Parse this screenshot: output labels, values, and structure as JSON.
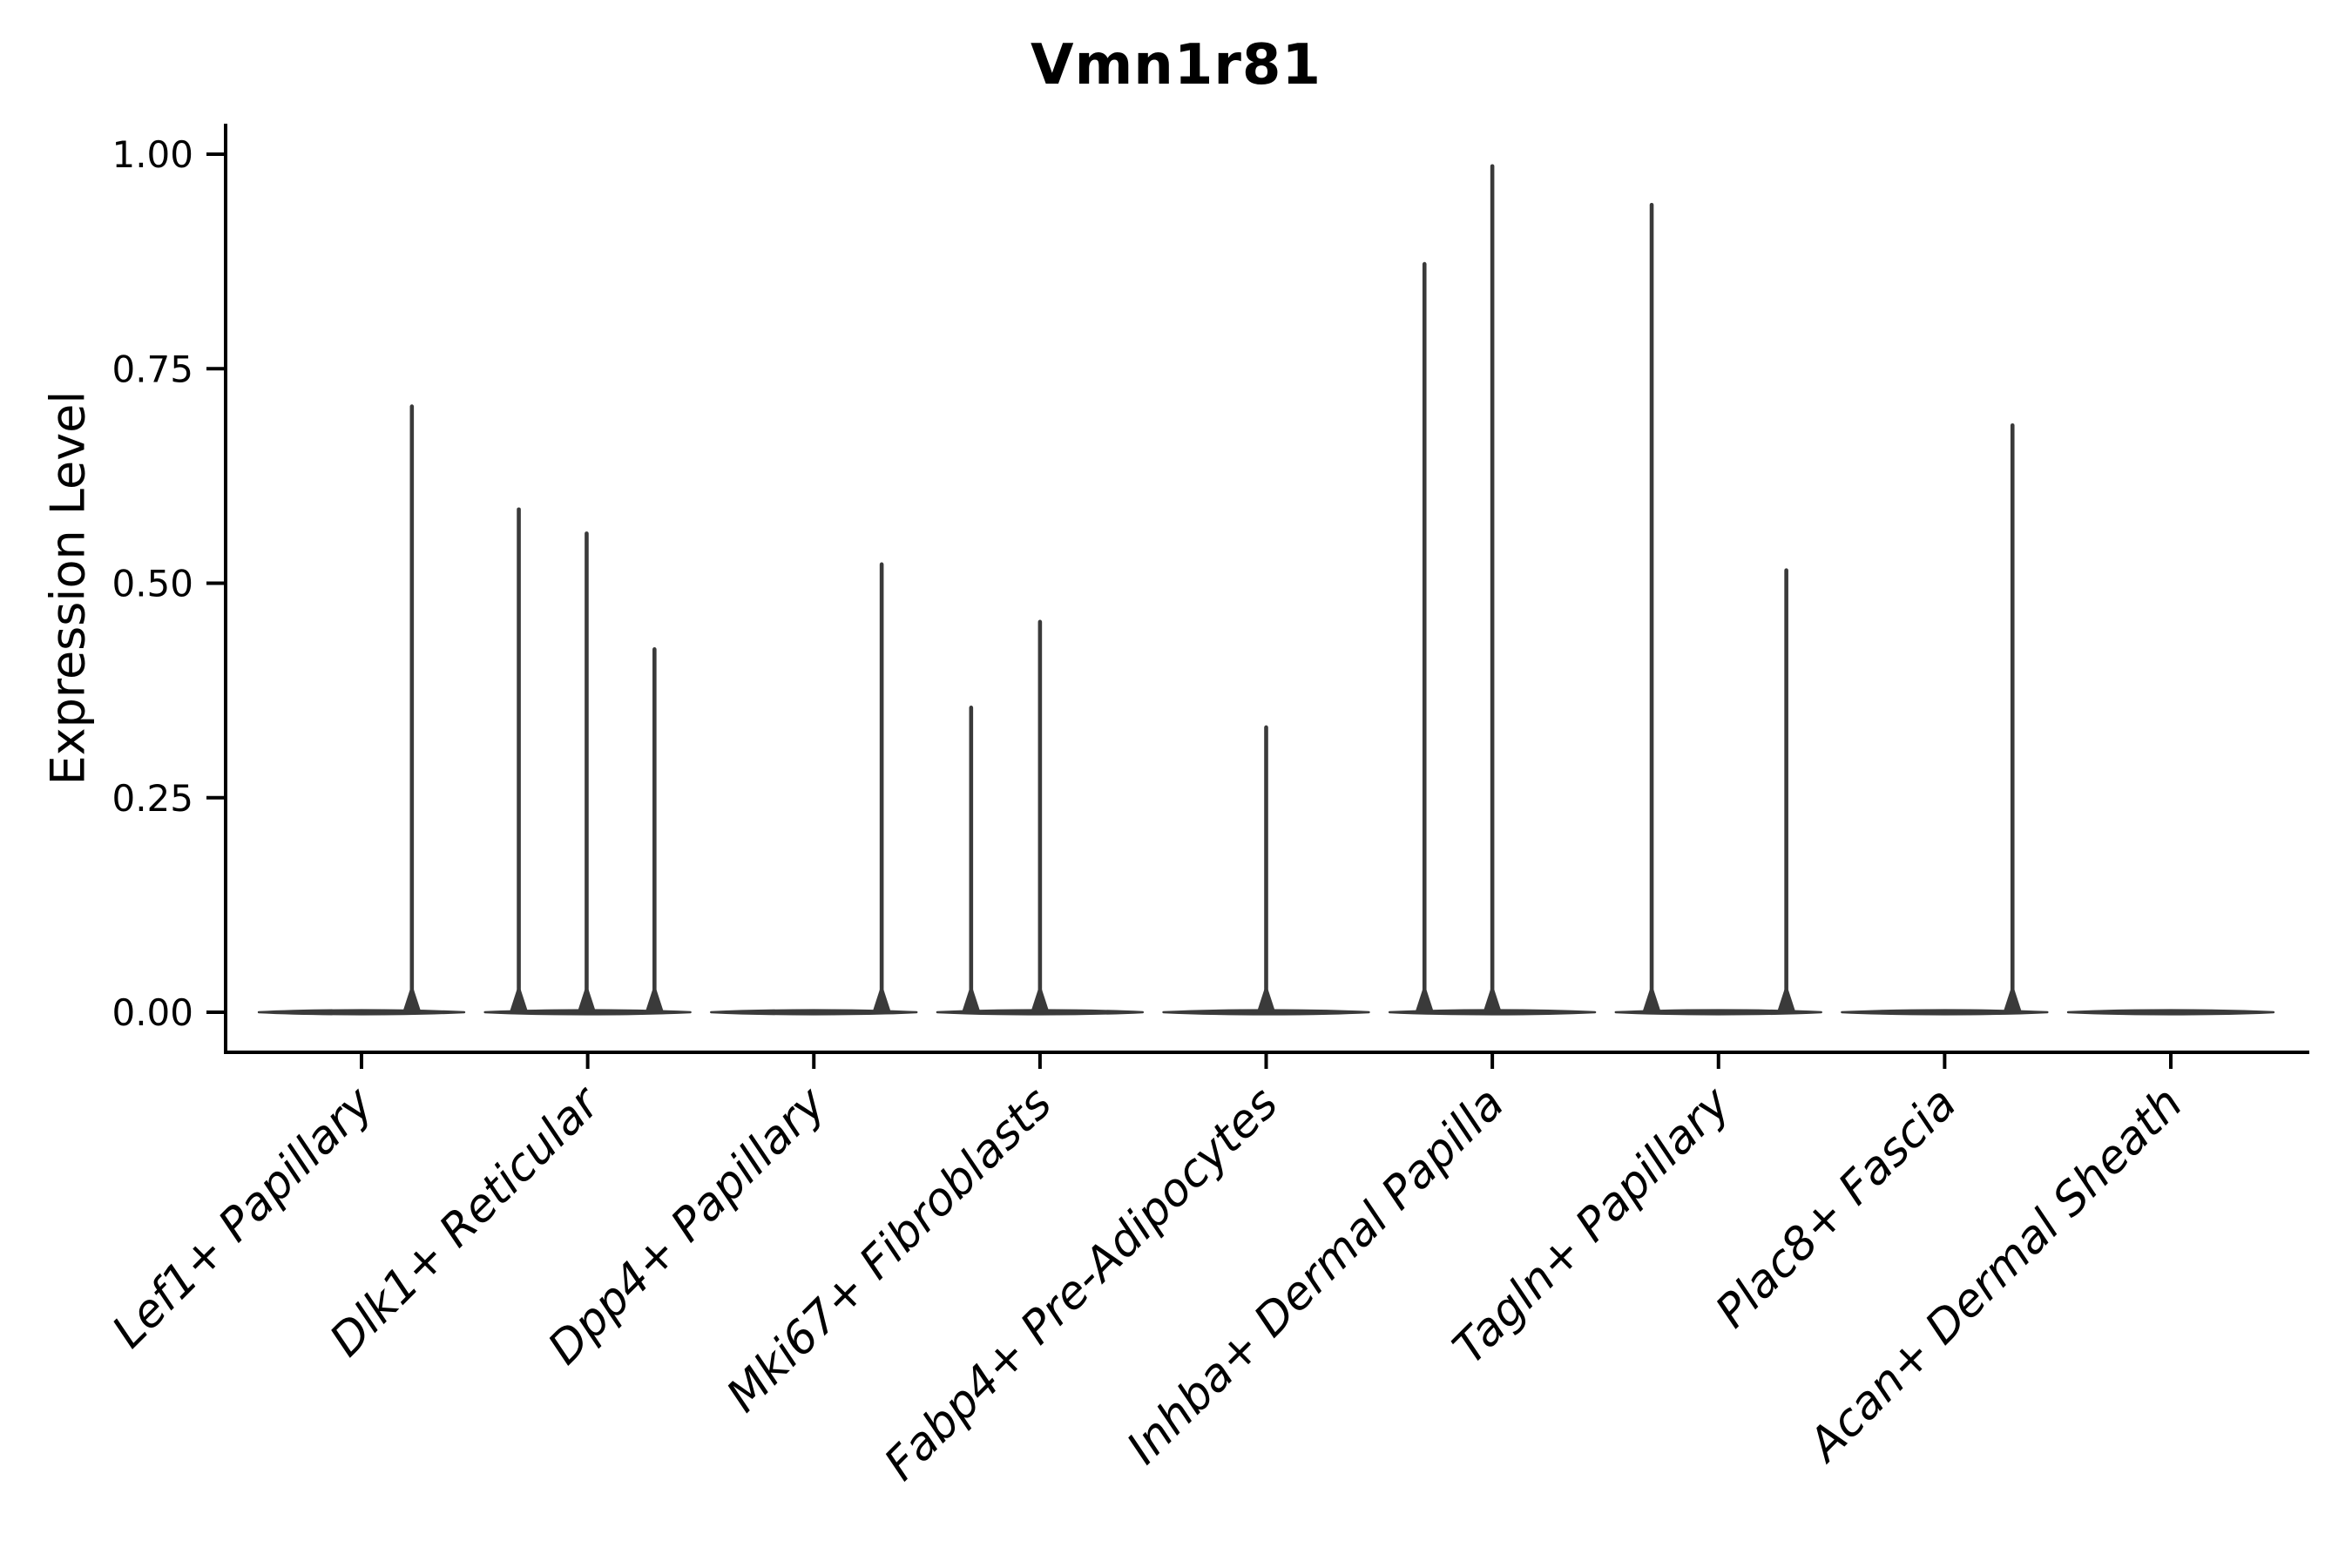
{
  "chart_data": {
    "type": "violin",
    "title": "Vmn1r81",
    "ylabel": "Expression Level",
    "xlabel": "",
    "yticks": [
      "0.00",
      "0.25",
      "0.50",
      "0.75",
      "1.00"
    ],
    "ytick_values": [
      0,
      0.25,
      0.5,
      0.75,
      1.0
    ],
    "ylim": [
      -0.047,
      1.036
    ],
    "grid": false,
    "legend": "none",
    "categories": [
      "Lef1+ Papillary",
      "Dlk1+ Reticular",
      "Dpp4+ Papillary",
      "Mki67+ Fibroblasts",
      "Fabp4+ Pre-Adipocytes",
      "Inhba+ Dermal Papilla",
      "Tagln+ Papillary",
      "Plac8+ Fascia",
      "Acan+ Dermal Sheath"
    ],
    "violins": [
      {
        "category": "Lef1+ Papillary",
        "baseline_value": 0,
        "spikes": [
          {
            "offset": 0.49,
            "value": 0.706
          }
        ]
      },
      {
        "category": "Dlk1+ Reticular",
        "baseline_value": 0,
        "spikes": [
          {
            "offset": -0.67,
            "value": 0.586
          },
          {
            "offset": -0.01,
            "value": 0.558
          },
          {
            "offset": 0.65,
            "value": 0.423
          }
        ]
      },
      {
        "category": "Dpp4+ Papillary",
        "baseline_value": 0,
        "spikes": [
          {
            "offset": 0.66,
            "value": 0.522
          }
        ]
      },
      {
        "category": "Mki67+ Fibroblasts",
        "baseline_value": 0,
        "spikes": [
          {
            "offset": -0.67,
            "value": 0.355
          },
          {
            "offset": 0.0,
            "value": 0.455
          }
        ]
      },
      {
        "category": "Fabp4+ Pre-Adipocytes",
        "baseline_value": 0,
        "spikes": [
          {
            "offset": 0.0,
            "value": 0.332
          }
        ]
      },
      {
        "category": "Inhba+ Dermal Papilla",
        "baseline_value": 0,
        "spikes": [
          {
            "offset": -0.66,
            "value": 0.872
          },
          {
            "offset": 0.0,
            "value": 0.986
          }
        ]
      },
      {
        "category": "Tagln+ Papillary",
        "baseline_value": 0,
        "spikes": [
          {
            "offset": -0.65,
            "value": 0.941
          },
          {
            "offset": 0.66,
            "value": 0.515
          }
        ]
      },
      {
        "category": "Plac8+ Fascia",
        "baseline_value": 0,
        "spikes": [
          {
            "offset": 0.66,
            "value": 0.684
          }
        ]
      },
      {
        "category": "Acan+ Dermal Sheath",
        "baseline_value": 0,
        "spikes": []
      }
    ],
    "colors": {
      "violin_line": "#3a3a3a",
      "axis": "#000000",
      "text": "#000000",
      "background": "#ffffff"
    }
  }
}
